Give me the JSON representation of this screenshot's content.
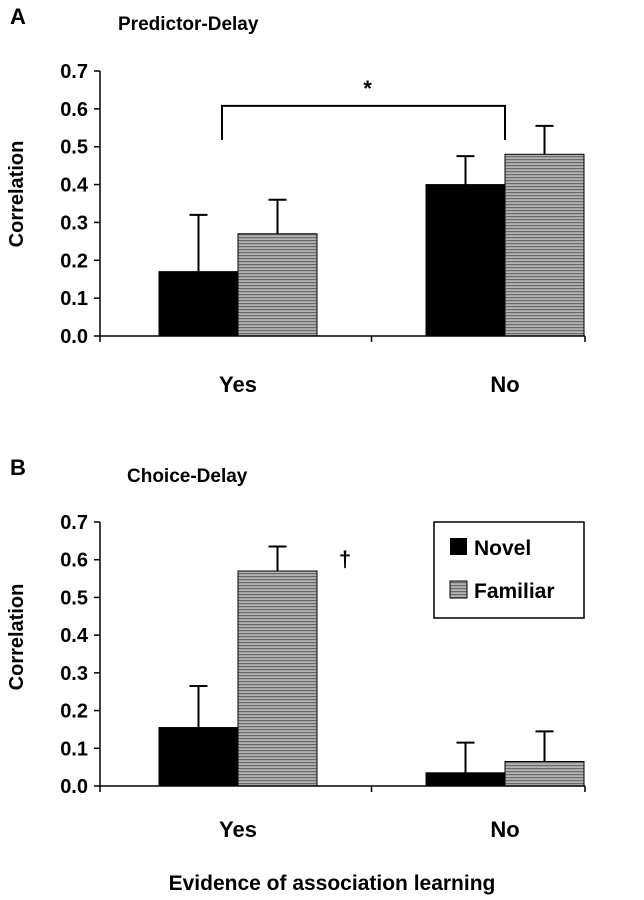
{
  "x_axis_title": "Evidence of association learning",
  "colors": {
    "novel": "#000000",
    "familiar": "#9a9a9a",
    "axis": "#000000"
  },
  "chart_data": [
    {
      "type": "bar",
      "panel": "A",
      "title": "Predictor-Delay",
      "ylabel": "Correlation",
      "ylim": [
        0,
        0.7
      ],
      "yticks": [
        "0.0",
        "0.1",
        "0.2",
        "0.3",
        "0.4",
        "0.5",
        "0.6",
        "0.7"
      ],
      "categories": [
        "Yes",
        "No"
      ],
      "series": [
        {
          "name": "Novel",
          "values": [
            0.17,
            0.4
          ],
          "errors": [
            0.15,
            0.075
          ]
        },
        {
          "name": "Familiar",
          "values": [
            0.27,
            0.48
          ],
          "errors": [
            0.09,
            0.075
          ]
        }
      ],
      "annotations": [
        {
          "text": "*",
          "type": "significance-bracket",
          "between": [
            "Yes",
            "No"
          ],
          "at_value": 0.6
        }
      ],
      "legend": null
    },
    {
      "type": "bar",
      "panel": "B",
      "title": "Choice-Delay",
      "ylabel": "Correlation",
      "ylim": [
        0,
        0.7
      ],
      "yticks": [
        "0.0",
        "0.1",
        "0.2",
        "0.3",
        "0.4",
        "0.5",
        "0.6",
        "0.7"
      ],
      "categories": [
        "Yes",
        "No"
      ],
      "series": [
        {
          "name": "Novel",
          "values": [
            0.155,
            0.035
          ],
          "errors": [
            0.11,
            0.08
          ]
        },
        {
          "name": "Familiar",
          "values": [
            0.57,
            0.065
          ],
          "errors": [
            0.065,
            0.08
          ]
        }
      ],
      "annotations": [
        {
          "text": "†",
          "type": "marker",
          "category": "Yes",
          "series": "Familiar"
        }
      ],
      "legend": {
        "position": "top-right",
        "entries": [
          "Novel",
          "Familiar"
        ]
      }
    }
  ]
}
